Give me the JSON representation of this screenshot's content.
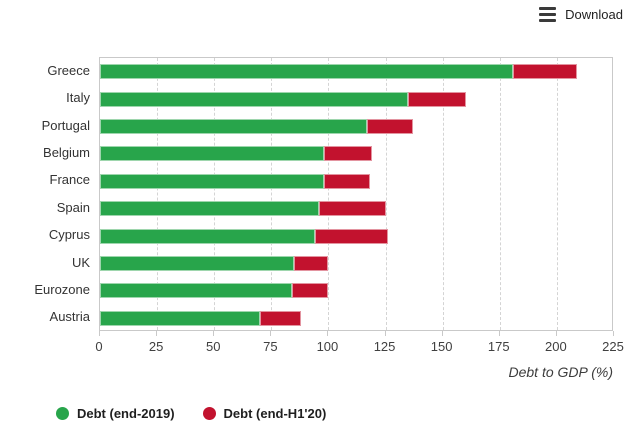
{
  "export_menu": {
    "label": "Download"
  },
  "colors": {
    "green": "#28a54b",
    "red": "#c2122e",
    "grid": "#d4d4d4",
    "border": "#c9c9c9",
    "text": "#333333"
  },
  "chart_data": {
    "type": "bar",
    "orientation": "horizontal",
    "stacked": true,
    "title": "",
    "xlabel": "Debt to GDP (%)",
    "ylabel": "",
    "xlim": [
      0,
      225
    ],
    "xticks": [
      0,
      25,
      50,
      75,
      100,
      125,
      150,
      175,
      200,
      225
    ],
    "grid": true,
    "legend_position": "bottom-left",
    "categories": [
      "Greece",
      "Italy",
      "Portugal",
      "Belgium",
      "France",
      "Spain",
      "Cyprus",
      "UK",
      "Eurozone",
      "Austria"
    ],
    "series": [
      {
        "name": "Debt (end-2019)",
        "color": "#28a54b",
        "values": [
          181,
          135,
          117,
          98,
          98,
          96,
          94,
          85,
          84,
          70
        ]
      },
      {
        "name": "Debt (end-H1'20)",
        "color": "#c2122e",
        "note": "values are the cumulative tip of the stacked red segment (total debt-to-GDP at end-H1 2020)",
        "values": [
          209,
          160,
          137,
          119,
          118,
          125,
          126,
          100,
          100,
          88
        ]
      }
    ]
  }
}
